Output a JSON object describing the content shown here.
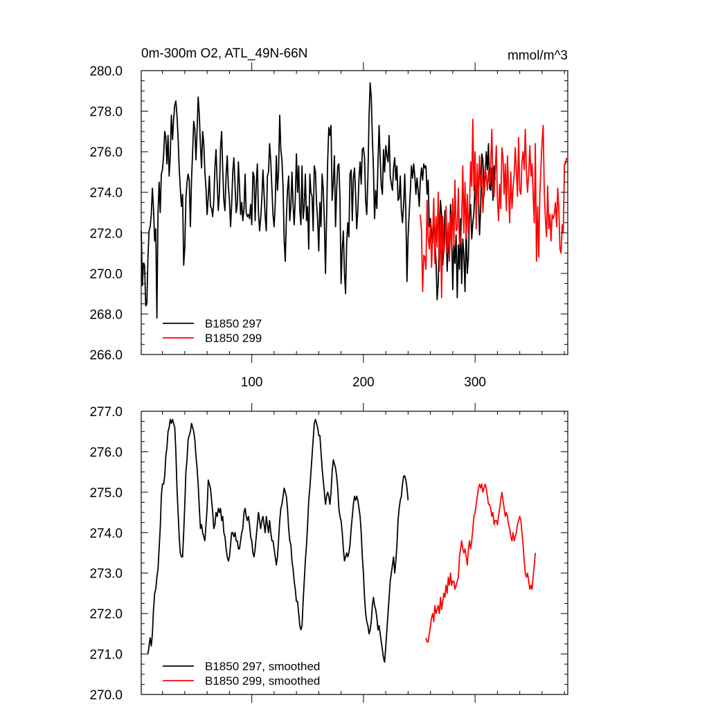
{
  "chart_data": [
    {
      "type": "line",
      "title": "0m-300m O2, ATL_49N-66N",
      "units": "mmol/m^3",
      "xlim": [
        1,
        383
      ],
      "ylim": [
        266,
        280
      ],
      "xticks": [
        100,
        200,
        300
      ],
      "yticks": [
        266,
        268,
        270,
        272,
        274,
        276,
        278,
        280
      ],
      "ytick_labels": [
        "266.0",
        "268.0",
        "270.0",
        "272.0",
        "274.0",
        "276.0",
        "278.0",
        "280.0"
      ],
      "xtick_labels": [
        "100",
        "200",
        "300"
      ],
      "legend_position": "bottom-left",
      "series": [
        {
          "name": "B1850 297",
          "color": "#000000",
          "x_start": 1,
          "values": [
            272.1,
            269.4,
            270.5,
            270.4,
            268.4,
            268.5,
            270.8,
            272.1,
            272.3,
            272.9,
            274.2,
            273.2,
            271.6,
            272.2,
            267.8,
            273.0,
            274.5,
            273.0,
            274.9,
            275.1,
            275.8,
            277.0,
            276.7,
            275.4,
            276.8,
            274.8,
            275.8,
            277.8,
            276.6,
            277.6,
            278.3,
            278.5,
            277.8,
            276.7,
            275.2,
            274.2,
            273.3,
            273.9,
            270.4,
            271.3,
            273.7,
            274.5,
            274.9,
            274.6,
            272.3,
            274.6,
            276.0,
            277.5,
            277.1,
            275.6,
            277.0,
            278.7,
            277.8,
            276.3,
            275.2,
            277.0,
            276.4,
            275.0,
            274.2,
            272.9,
            273.8,
            274.8,
            273.3,
            273.2,
            272.8,
            273.6,
            275.2,
            276.1,
            274.5,
            273.1,
            274.0,
            276.2,
            277.0,
            275.1,
            273.6,
            273.1,
            274.9,
            275.8,
            274.3,
            273.6,
            272.3,
            273.4,
            275.0,
            275.7,
            274.3,
            273.0,
            273.4,
            275.5,
            274.3,
            272.9,
            273.5,
            272.6,
            273.2,
            274.9,
            273.0,
            272.8,
            272.9,
            272.7,
            273.4,
            272.4,
            275.0,
            274.8,
            272.6,
            274.4,
            275.4,
            273.0,
            272.1,
            272.7,
            273.7,
            275.1,
            273.9,
            272.8,
            272.1,
            274.8,
            275.0,
            276.4,
            275.5,
            274.2,
            272.9,
            272.3,
            273.4,
            275.8,
            274.1,
            275.0,
            277.8,
            276.1,
            275.6,
            274.3,
            271.7,
            270.6,
            272.7,
            274.1,
            274.8,
            272.6,
            273.3,
            275.0,
            273.4,
            272.4,
            273.7,
            275.9,
            274.0,
            275.3,
            273.1,
            272.4,
            275.3,
            272.7,
            273.3,
            274.9,
            272.6,
            273.3,
            271.2,
            274.9,
            274.0,
            273.8,
            272.1,
            275.3,
            275.0,
            273.5,
            272.6,
            271.1,
            273.5,
            272.3,
            274.9,
            274.2,
            272.5,
            270.0,
            272.8,
            275.6,
            277.2,
            276.8,
            277.3,
            273.6,
            274.5,
            275.8,
            272.3,
            274.1,
            275.3,
            275.4,
            273.7,
            269.5,
            271.2,
            272.1,
            270.0,
            269.0,
            271.5,
            272.5,
            271.8,
            274.9,
            275.1,
            272.6,
            274.7,
            275.2,
            273.9,
            272.2,
            273.1,
            274.7,
            275.5,
            274.4,
            276.1,
            276.2,
            275.7,
            273.6,
            272.9,
            274.8,
            277.7,
            279.4,
            278.7,
            276.7,
            275.1,
            272.7,
            274.1,
            273.2,
            275.4,
            277.3,
            275.7,
            274.3,
            273.9,
            276.1,
            275.0,
            276.3,
            275.8,
            275.5,
            276.8,
            274.8,
            274.4,
            274.1,
            275.2,
            275.7,
            274.6,
            275.3,
            273.6,
            273.7,
            274.8,
            273.1,
            272.5,
            273.4,
            274.9,
            272.9,
            269.6,
            271.8,
            273.0,
            274.0,
            275.3,
            274.7,
            275.4,
            274.8,
            273.9,
            274.7,
            274.1,
            273.3,
            274.6,
            275.2,
            274.6,
            275.4,
            275.2,
            275.3,
            273.9,
            274.6,
            272.3,
            272.7,
            272.0,
            271.5,
            272.8,
            271.7,
            270.6,
            268.7,
            269.5,
            272.1,
            273.6,
            272.9,
            270.4,
            271.4,
            273.1,
            272.7,
            270.1,
            271.5,
            270.9,
            273.4,
            272.1,
            269.2,
            271.5,
            270.5,
            271.9,
            268.8,
            271.4,
            270.2,
            272.7,
            269.5,
            271.7,
            270.9,
            269.1,
            272.3,
            270.0,
            270.8,
            272.9,
            273.4,
            271.7,
            272.5,
            273.0,
            274.5,
            273.1,
            275.0,
            273.8,
            271.9,
            273.2,
            275.9,
            275.6,
            273.8,
            274.8,
            276.0,
            275.1,
            276.4,
            274.2,
            274.1,
            275.2,
            273.6,
            275.3,
            274.6
          ]
        },
        {
          "name": "B1850 299",
          "color": "#ff0000",
          "x_start": 251,
          "values": [
            272.9,
            272.1,
            269.1,
            270.9,
            270.8,
            270.2,
            273.6,
            271.8,
            271.2,
            272.5,
            270.3,
            271.9,
            273.7,
            270.5,
            272.8,
            271.3,
            274.0,
            270.1,
            272.9,
            268.8,
            272.8,
            271.0,
            271.6,
            273.3,
            271.0,
            272.5,
            270.6,
            272.9,
            271.2,
            273.7,
            271.4,
            274.6,
            272.1,
            272.2,
            274.2,
            271.4,
            271.5,
            272.6,
            275.3,
            272.0,
            274.5,
            271.7,
            273.9,
            272.0,
            273.2,
            275.5,
            274.3,
            277.6,
            274.1,
            276.0,
            272.2,
            275.4,
            273.4,
            275.8,
            274.3,
            274.9,
            273.0,
            274.2,
            275.3,
            274.8,
            274.1,
            275.0,
            274.4,
            275.3,
            277.1,
            274.4,
            273.8,
            275.0,
            276.3,
            273.7,
            272.6,
            274.4,
            273.2,
            276.2,
            275.7,
            273.9,
            275.4,
            273.1,
            275.8,
            274.2,
            272.5,
            275.0,
            273.2,
            274.2,
            274.9,
            276.2,
            275.0,
            273.8,
            276.7,
            274.1,
            273.9,
            275.5,
            276.0,
            275.1,
            277.1,
            275.0,
            274.0,
            274.9,
            276.3,
            274.8,
            275.4,
            273.9,
            272.5,
            276.4,
            270.6,
            273.3,
            270.8,
            273.9,
            275.3,
            276.5,
            277.3,
            274.0,
            272.7,
            271.8,
            274.3,
            272.2,
            272.9,
            271.6,
            272.9,
            272.7,
            272.9,
            273.5,
            272.3,
            274.2,
            273.2,
            271.2,
            271.0,
            272.4,
            272.0,
            275.4,
            275.4,
            275.7
          ]
        }
      ]
    },
    {
      "type": "line",
      "title": "",
      "xlim": [
        1,
        383
      ],
      "ylim": [
        270,
        277
      ],
      "xticks": [
        100,
        200,
        300
      ],
      "yticks": [
        270,
        271,
        272,
        273,
        274,
        275,
        276,
        277
      ],
      "ytick_labels": [
        "270.0",
        "271.0",
        "272.0",
        "273.0",
        "274.0",
        "275.0",
        "276.0",
        "277.0"
      ],
      "legend_position": "bottom-left",
      "series": [
        {
          "name": "B1850 297, smoothed",
          "color": "#000000",
          "x_start": 7,
          "values": [
            271.0,
            271.2,
            271.4,
            271.2,
            271.5,
            272.1,
            272.5,
            272.6,
            272.9,
            273.1,
            273.6,
            274.1,
            274.9,
            275.2,
            275.2,
            275.4,
            275.9,
            276.1,
            276.5,
            276.6,
            276.8,
            276.7,
            276.8,
            276.7,
            276.6,
            276.0,
            275.1,
            274.5,
            273.9,
            273.5,
            273.4,
            273.4,
            274.0,
            274.7,
            275.5,
            275.8,
            276.3,
            276.4,
            276.5,
            276.7,
            276.6,
            276.5,
            276.3,
            275.9,
            275.6,
            275.2,
            274.6,
            274.1,
            274.2,
            274.0,
            273.9,
            273.8,
            274.2,
            274.6,
            275.3,
            275.2,
            275.1,
            274.8,
            274.5,
            274.1,
            274.2,
            274.5,
            274.4,
            274.6,
            274.5,
            274.6,
            274.3,
            274.4,
            274.0,
            273.9,
            273.6,
            273.4,
            273.3,
            273.4,
            273.7,
            274.0,
            274.0,
            273.9,
            274.0,
            273.8,
            273.8,
            273.6,
            273.6,
            273.8,
            274.0,
            274.1,
            274.5,
            274.6,
            274.4,
            274.3,
            274.4,
            274.2,
            273.9,
            273.8,
            273.5,
            273.4,
            273.6,
            273.9,
            274.2,
            274.5,
            274.3,
            274.1,
            274.3,
            274.4,
            274.2,
            274.0,
            274.4,
            274.2,
            274.0,
            274.3,
            274.0,
            273.8,
            273.8,
            273.6,
            273.4,
            273.2,
            273.4,
            273.8,
            274.3,
            274.6,
            274.7,
            274.9,
            275.1,
            275.0,
            274.9,
            274.6,
            274.1,
            273.8,
            273.7,
            273.3,
            273.1,
            272.8,
            272.6,
            272.3,
            272.3,
            272.0,
            271.7,
            271.6,
            271.7,
            272.3,
            272.8,
            273.3,
            273.7,
            274.2,
            274.8,
            275.1,
            275.5,
            275.9,
            276.3,
            276.7,
            276.8,
            276.7,
            276.6,
            276.4,
            276.4,
            276.0,
            275.6,
            275.3,
            275.0,
            274.7,
            274.9,
            275.0,
            274.9,
            274.7,
            275.0,
            275.5,
            275.8,
            275.7,
            275.6,
            275.4,
            275.1,
            274.6,
            274.4,
            274.3,
            274.0,
            273.6,
            273.3,
            273.4,
            273.5,
            273.4,
            273.5,
            273.7,
            274.1,
            274.4,
            274.7,
            274.9,
            274.8,
            274.9,
            274.8,
            274.6,
            274.4,
            274.0,
            273.4,
            273.0,
            272.4,
            272.0,
            271.8,
            271.7,
            271.5,
            271.6,
            271.8,
            272.2,
            272.4,
            272.2,
            272.1,
            271.9,
            271.6,
            271.7,
            271.5,
            271.3,
            271.1,
            270.9,
            270.8,
            271.2,
            271.6,
            272.0,
            272.4,
            272.8,
            273.0,
            273.2,
            273.4,
            273.0,
            273.3,
            273.7,
            274.3,
            274.6,
            274.8,
            274.9,
            275.2,
            275.4,
            275.4,
            275.3,
            275.1,
            274.8
          ]
        },
        {
          "name": "B1850 299, smoothed",
          "color": "#ff0000",
          "x_start": 256,
          "values": [
            271.4,
            271.3,
            271.3,
            271.5,
            271.7,
            271.9,
            272.0,
            271.8,
            272.2,
            272.0,
            272.1,
            272.2,
            272.0,
            272.4,
            272.1,
            272.3,
            272.5,
            272.4,
            272.7,
            272.5,
            272.9,
            272.7,
            273.0,
            272.7,
            272.8,
            272.8,
            272.6,
            272.7,
            272.8,
            272.9,
            273.4,
            273.6,
            273.8,
            273.6,
            273.5,
            273.6,
            273.4,
            273.2,
            273.6,
            273.8,
            273.6,
            273.8,
            274.1,
            274.4,
            274.5,
            274.7,
            274.9,
            275.1,
            275.2,
            275.1,
            275.2,
            275.0,
            275.1,
            275.2,
            275.1,
            274.9,
            274.7,
            274.7,
            274.6,
            274.4,
            274.5,
            274.2,
            274.3,
            274.3,
            274.2,
            274.4,
            274.6,
            274.8,
            275.0,
            274.8,
            274.6,
            274.4,
            274.5,
            274.4,
            274.2,
            274.1,
            273.9,
            273.8,
            274.0,
            273.8,
            273.9,
            274.0,
            274.2,
            274.3,
            274.4,
            274.3,
            274.0,
            273.7,
            273.3,
            273.0,
            272.9,
            273.0,
            272.8,
            272.6,
            272.7,
            272.6,
            272.9,
            273.2,
            273.5
          ]
        }
      ]
    }
  ]
}
